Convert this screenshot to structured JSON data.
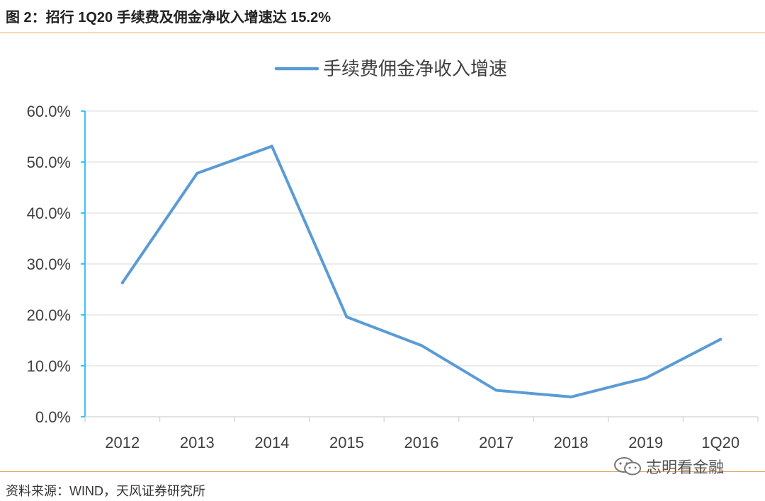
{
  "figure": {
    "title": "图 2：招行 1Q20 手续费及佣金净收入增速达 15.2%",
    "source": "资料来源：WIND，天风证券研究所",
    "watermark": "志明看金融"
  },
  "colors": {
    "series": "#5b9bd5",
    "axis": "#00b0f0",
    "grid": "#d9d9d9",
    "rule": "#e0a560"
  },
  "chart_data": {
    "type": "line",
    "categories": [
      "2012",
      "2013",
      "2014",
      "2015",
      "2016",
      "2017",
      "2018",
      "2019",
      "1Q20"
    ],
    "series": [
      {
        "name": "手续费佣金净收入增速",
        "values": [
          26.3,
          47.8,
          53.1,
          19.6,
          14.0,
          5.2,
          3.9,
          7.6,
          15.2
        ]
      }
    ],
    "ylim": [
      0,
      60
    ],
    "yticks": [
      0,
      10,
      20,
      30,
      40,
      50,
      60
    ],
    "ytick_labels": [
      "0.0%",
      "10.0%",
      "20.0%",
      "30.0%",
      "40.0%",
      "50.0%",
      "60.0%"
    ],
    "grid": true,
    "legend": "top-center"
  }
}
